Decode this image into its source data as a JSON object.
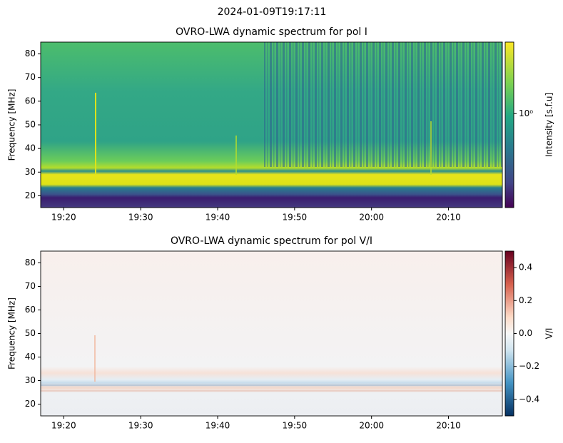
{
  "suptitle": "2024-01-09T19:17:11",
  "chart_data": [
    {
      "type": "heatmap",
      "title": "OVRO-LWA dynamic spectrum for pol I",
      "ylabel": "Frequency [MHz]",
      "xlim": [
        "19:17",
        "20:17"
      ],
      "xticks": [
        "19:20",
        "19:30",
        "19:40",
        "19:50",
        "20:00",
        "20:10"
      ],
      "ylim": [
        15,
        85
      ],
      "yticks": [
        20,
        30,
        40,
        50,
        60,
        70,
        80
      ],
      "colorbar": {
        "label": "Intensity [s.f.u]",
        "scale": "log",
        "colormap": "viridis",
        "lim": [
          0.3,
          2.5
        ],
        "ticks": [
          {
            "value": 1,
            "label": "10⁰"
          }
        ]
      }
    },
    {
      "type": "heatmap",
      "title": "OVRO-LWA dynamic spectrum for pol V/I",
      "ylabel": "Frequency [MHz]",
      "xlim": [
        "19:17",
        "20:17"
      ],
      "xticks": [
        "19:20",
        "19:30",
        "19:40",
        "19:50",
        "20:00",
        "20:10"
      ],
      "ylim": [
        15,
        85
      ],
      "yticks": [
        20,
        30,
        40,
        50,
        60,
        70,
        80
      ],
      "colorbar": {
        "label": "V/I",
        "scale": "linear",
        "colormap": "RdBu_r",
        "lim": [
          -0.5,
          0.5
        ],
        "ticks": [
          {
            "value": -0.4,
            "label": "−0.4"
          },
          {
            "value": -0.2,
            "label": "−0.2"
          },
          {
            "value": 0,
            "label": "0.0"
          },
          0.2,
          0.4
        ]
      }
    }
  ]
}
